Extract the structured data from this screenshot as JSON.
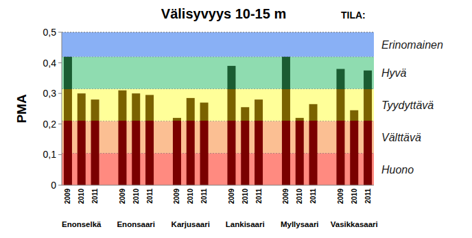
{
  "chart_data": {
    "type": "bar",
    "title": "Välisyvyys 10-15 m",
    "subtitle": "TILA:",
    "y_label": "PMA",
    "categories": [
      "Enonselkä",
      "Enonsaari",
      "Karjusaari",
      "Lankisaari",
      "Myllysaari",
      "Vasikkasaari"
    ],
    "series": [
      {
        "name": "2009",
        "values": [
          0.42,
          0.31,
          0.22,
          0.39,
          0.42,
          0.38
        ]
      },
      {
        "name": "2010",
        "values": [
          0.3,
          0.3,
          0.285,
          0.255,
          0.22,
          0.245
        ]
      },
      {
        "name": "2011",
        "values": [
          0.28,
          0.295,
          0.27,
          0.28,
          0.265,
          0.375
        ]
      }
    ],
    "bands": [
      {
        "label": "Huono",
        "from": 0,
        "to": 0.105,
        "color": "#ff8a80"
      },
      {
        "label": "Välttävä",
        "from": 0.105,
        "to": 0.21,
        "color": "#fbbf93"
      },
      {
        "label": "Tyydyttävä",
        "from": 0.21,
        "to": 0.315,
        "color": "#ffff99"
      },
      {
        "label": "Hyvä",
        "from": 0.315,
        "to": 0.42,
        "color": "#8fdcb0"
      },
      {
        "label": "Erinomainen",
        "from": 0.42,
        "to": 0.5,
        "color": "#89b0f5"
      }
    ],
    "ylim": [
      0,
      0.5
    ],
    "yticks": [
      0,
      {
        "value": 0.1,
        "label": "0,1"
      },
      {
        "value": 0.2,
        "label": "0,2"
      },
      {
        "value": 0.3,
        "label": "0,3"
      },
      {
        "value": 0.4,
        "label": "0,4"
      },
      {
        "value": 0.5,
        "label": "0,5"
      }
    ]
  }
}
